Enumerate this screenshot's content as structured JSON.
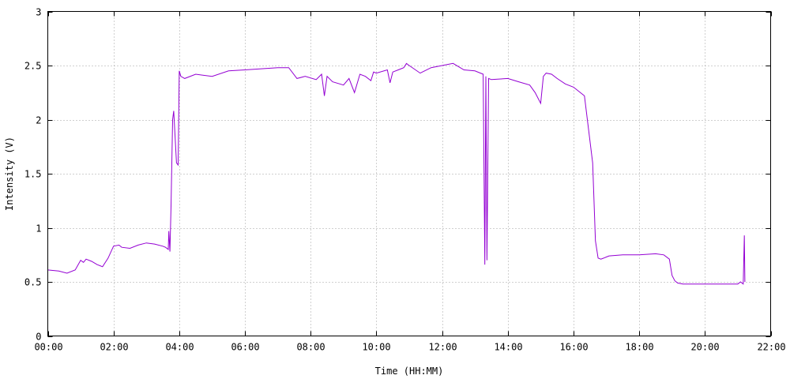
{
  "chart_data": {
    "type": "line",
    "title": "",
    "xlabel": "Time (HH:MM)",
    "ylabel": "Intensity (V)",
    "xlim": [
      "00:00",
      "22:00"
    ],
    "ylim": [
      0,
      3
    ],
    "x_ticks": [
      "00:00",
      "02:00",
      "04:00",
      "06:00",
      "08:00",
      "10:00",
      "12:00",
      "14:00",
      "16:00",
      "18:00",
      "20:00",
      "22:00"
    ],
    "y_ticks": [
      "0",
      "0.5",
      "1",
      "1.5",
      "2",
      "2.5",
      "3"
    ],
    "grid": true,
    "legend": "none",
    "series": [
      {
        "color": "#9400d3",
        "x": [
          "00:00",
          "00:20",
          "00:35",
          "00:50",
          "01:00",
          "01:05",
          "01:10",
          "01:20",
          "01:30",
          "01:40",
          "01:50",
          "02:00",
          "02:10",
          "02:15",
          "02:30",
          "02:45",
          "03:00",
          "03:15",
          "03:30",
          "03:35",
          "03:40",
          "03:41",
          "03:43",
          "03:45",
          "03:48",
          "03:50",
          "03:55",
          "03:58",
          "04:00",
          "04:03",
          "04:10",
          "04:30",
          "05:00",
          "05:30",
          "06:00",
          "06:30",
          "07:00",
          "07:20",
          "07:35",
          "07:50",
          "08:10",
          "08:20",
          "08:25",
          "08:30",
          "08:40",
          "09:00",
          "09:10",
          "09:20",
          "09:30",
          "09:40",
          "09:50",
          "09:55",
          "10:00",
          "10:20",
          "10:25",
          "10:30",
          "10:40",
          "10:50",
          "10:55",
          "11:00",
          "11:20",
          "11:40",
          "12:00",
          "12:20",
          "12:40",
          "13:00",
          "13:15",
          "13:18",
          "13:20",
          "13:22",
          "13:25",
          "13:30",
          "14:00",
          "14:20",
          "14:40",
          "14:50",
          "15:00",
          "15:05",
          "15:10",
          "15:20",
          "15:30",
          "15:45",
          "16:00",
          "16:20",
          "16:35",
          "16:40",
          "16:45",
          "16:50",
          "16:55",
          "17:00",
          "17:05",
          "17:30",
          "18:00",
          "18:30",
          "18:45",
          "18:55",
          "19:00",
          "19:05",
          "19:10",
          "19:20",
          "19:40",
          "20:00",
          "20:30",
          "21:00",
          "21:05",
          "21:10",
          "21:12",
          "21:13"
        ],
        "values": [
          0.61,
          0.6,
          0.58,
          0.61,
          0.7,
          0.68,
          0.71,
          0.69,
          0.66,
          0.64,
          0.72,
          0.83,
          0.84,
          0.82,
          0.81,
          0.84,
          0.86,
          0.85,
          0.83,
          0.82,
          0.8,
          0.97,
          0.78,
          1.2,
          2.0,
          2.08,
          1.6,
          1.58,
          2.45,
          2.4,
          2.38,
          2.42,
          2.4,
          2.45,
          2.46,
          2.47,
          2.48,
          2.48,
          2.38,
          2.4,
          2.37,
          2.42,
          2.22,
          2.4,
          2.35,
          2.32,
          2.38,
          2.25,
          2.42,
          2.4,
          2.36,
          2.44,
          2.43,
          2.46,
          2.34,
          2.44,
          2.46,
          2.48,
          2.52,
          2.5,
          2.43,
          2.48,
          2.5,
          2.52,
          2.46,
          2.45,
          2.42,
          0.66,
          2.4,
          0.7,
          2.38,
          2.37,
          2.38,
          2.35,
          2.32,
          2.25,
          2.15,
          2.4,
          2.43,
          2.42,
          2.38,
          2.33,
          2.3,
          2.22,
          1.6,
          0.88,
          0.72,
          0.71,
          0.72,
          0.73,
          0.74,
          0.75,
          0.75,
          0.76,
          0.75,
          0.71,
          0.56,
          0.51,
          0.49,
          0.48,
          0.48,
          0.48,
          0.48,
          0.48,
          0.5,
          0.48,
          0.93,
          0.5
        ]
      }
    ]
  }
}
